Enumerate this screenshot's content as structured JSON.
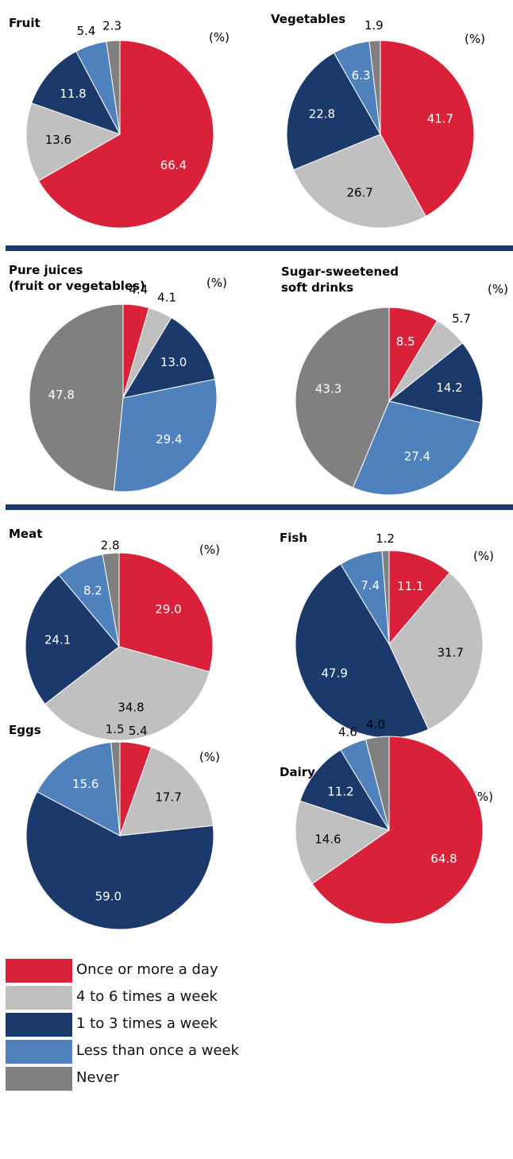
{
  "categories": [
    "Once or more a day",
    "4 to 6 times a week",
    "1 to 3 times a week",
    "Less than once a week",
    "Never"
  ],
  "colors": {
    "Once or more a day": "#d9213a",
    "4 to 6 times a week": "#c0c0c0",
    "1 to 3 times a week": "#1b3a6b",
    "Less than once a week": "#4f81bd",
    "Never": "#808080"
  },
  "unit_label": "(%)",
  "chart_data": [
    {
      "type": "pie",
      "title": "Fruit",
      "categories": [
        "Once or more a day",
        "4 to 6 times a week",
        "1 to 3 times a week",
        "Less than once a week",
        "Never"
      ],
      "values": [
        66.4,
        13.6,
        11.8,
        5.4,
        2.3
      ]
    },
    {
      "type": "pie",
      "title": "Vegetables",
      "categories": [
        "Once or more a day",
        "4 to 6 times a week",
        "1 to 3 times a week",
        "Less than once a week",
        "Never"
      ],
      "values": [
        41.7,
        26.7,
        22.8,
        6.3,
        1.9
      ]
    },
    {
      "type": "pie",
      "title": "Pure juices (fruit or vegetables)",
      "categories": [
        "Once or more a day",
        "4 to 6 times a week",
        "1 to 3 times a week",
        "Less than once a week",
        "Never"
      ],
      "values": [
        4.4,
        4.1,
        13.0,
        29.4,
        47.8
      ]
    },
    {
      "type": "pie",
      "title": "Sugar-sweetened soft drinks",
      "categories": [
        "Once or more a day",
        "4 to 6 times a week",
        "1 to 3 times a week",
        "Less than once a week",
        "Never"
      ],
      "values": [
        8.5,
        5.7,
        14.2,
        27.4,
        43.3
      ]
    },
    {
      "type": "pie",
      "title": "Meat",
      "categories": [
        "Once or more a day",
        "4 to 6 times a week",
        "1 to 3 times a week",
        "Less than once a week",
        "Never"
      ],
      "values": [
        29.0,
        34.8,
        24.1,
        8.2,
        2.8
      ]
    },
    {
      "type": "pie",
      "title": "Fish",
      "categories": [
        "Once or more a day",
        "4 to 6 times a week",
        "1 to 3 times a week",
        "Less than once a week",
        "Never"
      ],
      "values": [
        11.1,
        31.7,
        47.9,
        7.4,
        1.2
      ]
    },
    {
      "type": "pie",
      "title": "Eggs",
      "categories": [
        "Once or more a day",
        "4 to 6 times a week",
        "1 to 3 times a week",
        "Less than once a week",
        "Never"
      ],
      "values": [
        5.4,
        17.7,
        59.0,
        15.6,
        1.5
      ]
    },
    {
      "type": "pie",
      "title": "Dairy products",
      "categories": [
        "Once or more a day",
        "4 to 6 times a week",
        "1 to 3 times a week",
        "Less than once a week",
        "Never"
      ],
      "values": [
        64.8,
        14.6,
        11.2,
        4.6,
        4.0
      ]
    }
  ],
  "legend": [
    {
      "label": "Once or more a day",
      "color": "#d9213a"
    },
    {
      "label": "4 to 6 times a week",
      "color": "#c0c0c0"
    },
    {
      "label": "1 to 3 times a week",
      "color": "#1b3a6b"
    },
    {
      "label": "Less than once a week",
      "color": "#4f81bd"
    },
    {
      "label": "Never",
      "color": "#808080"
    }
  ]
}
